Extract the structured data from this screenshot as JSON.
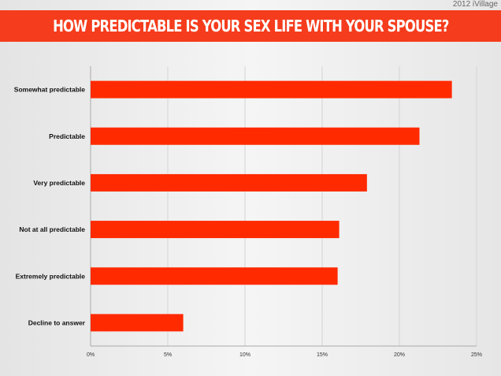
{
  "credit": "2012 iVillage",
  "chart_data": {
    "type": "bar",
    "orientation": "horizontal",
    "title": "HOW PREDICTABLE IS YOUR SEX LIFE WITH YOUR SPOUSE?",
    "categories": [
      "Somewhat predictable",
      "Predictable",
      "Very predictable",
      "Not at all predictable",
      "Extremely predictable",
      "Decline to answer"
    ],
    "values": [
      23.4,
      21.3,
      17.9,
      16.1,
      16.0,
      6.0
    ],
    "xlim": [
      0,
      25
    ],
    "xticks": [
      "0%",
      "5%",
      "10%",
      "15%",
      "20%",
      "25%"
    ],
    "grid": true,
    "bar_color": "#ff2a00"
  }
}
